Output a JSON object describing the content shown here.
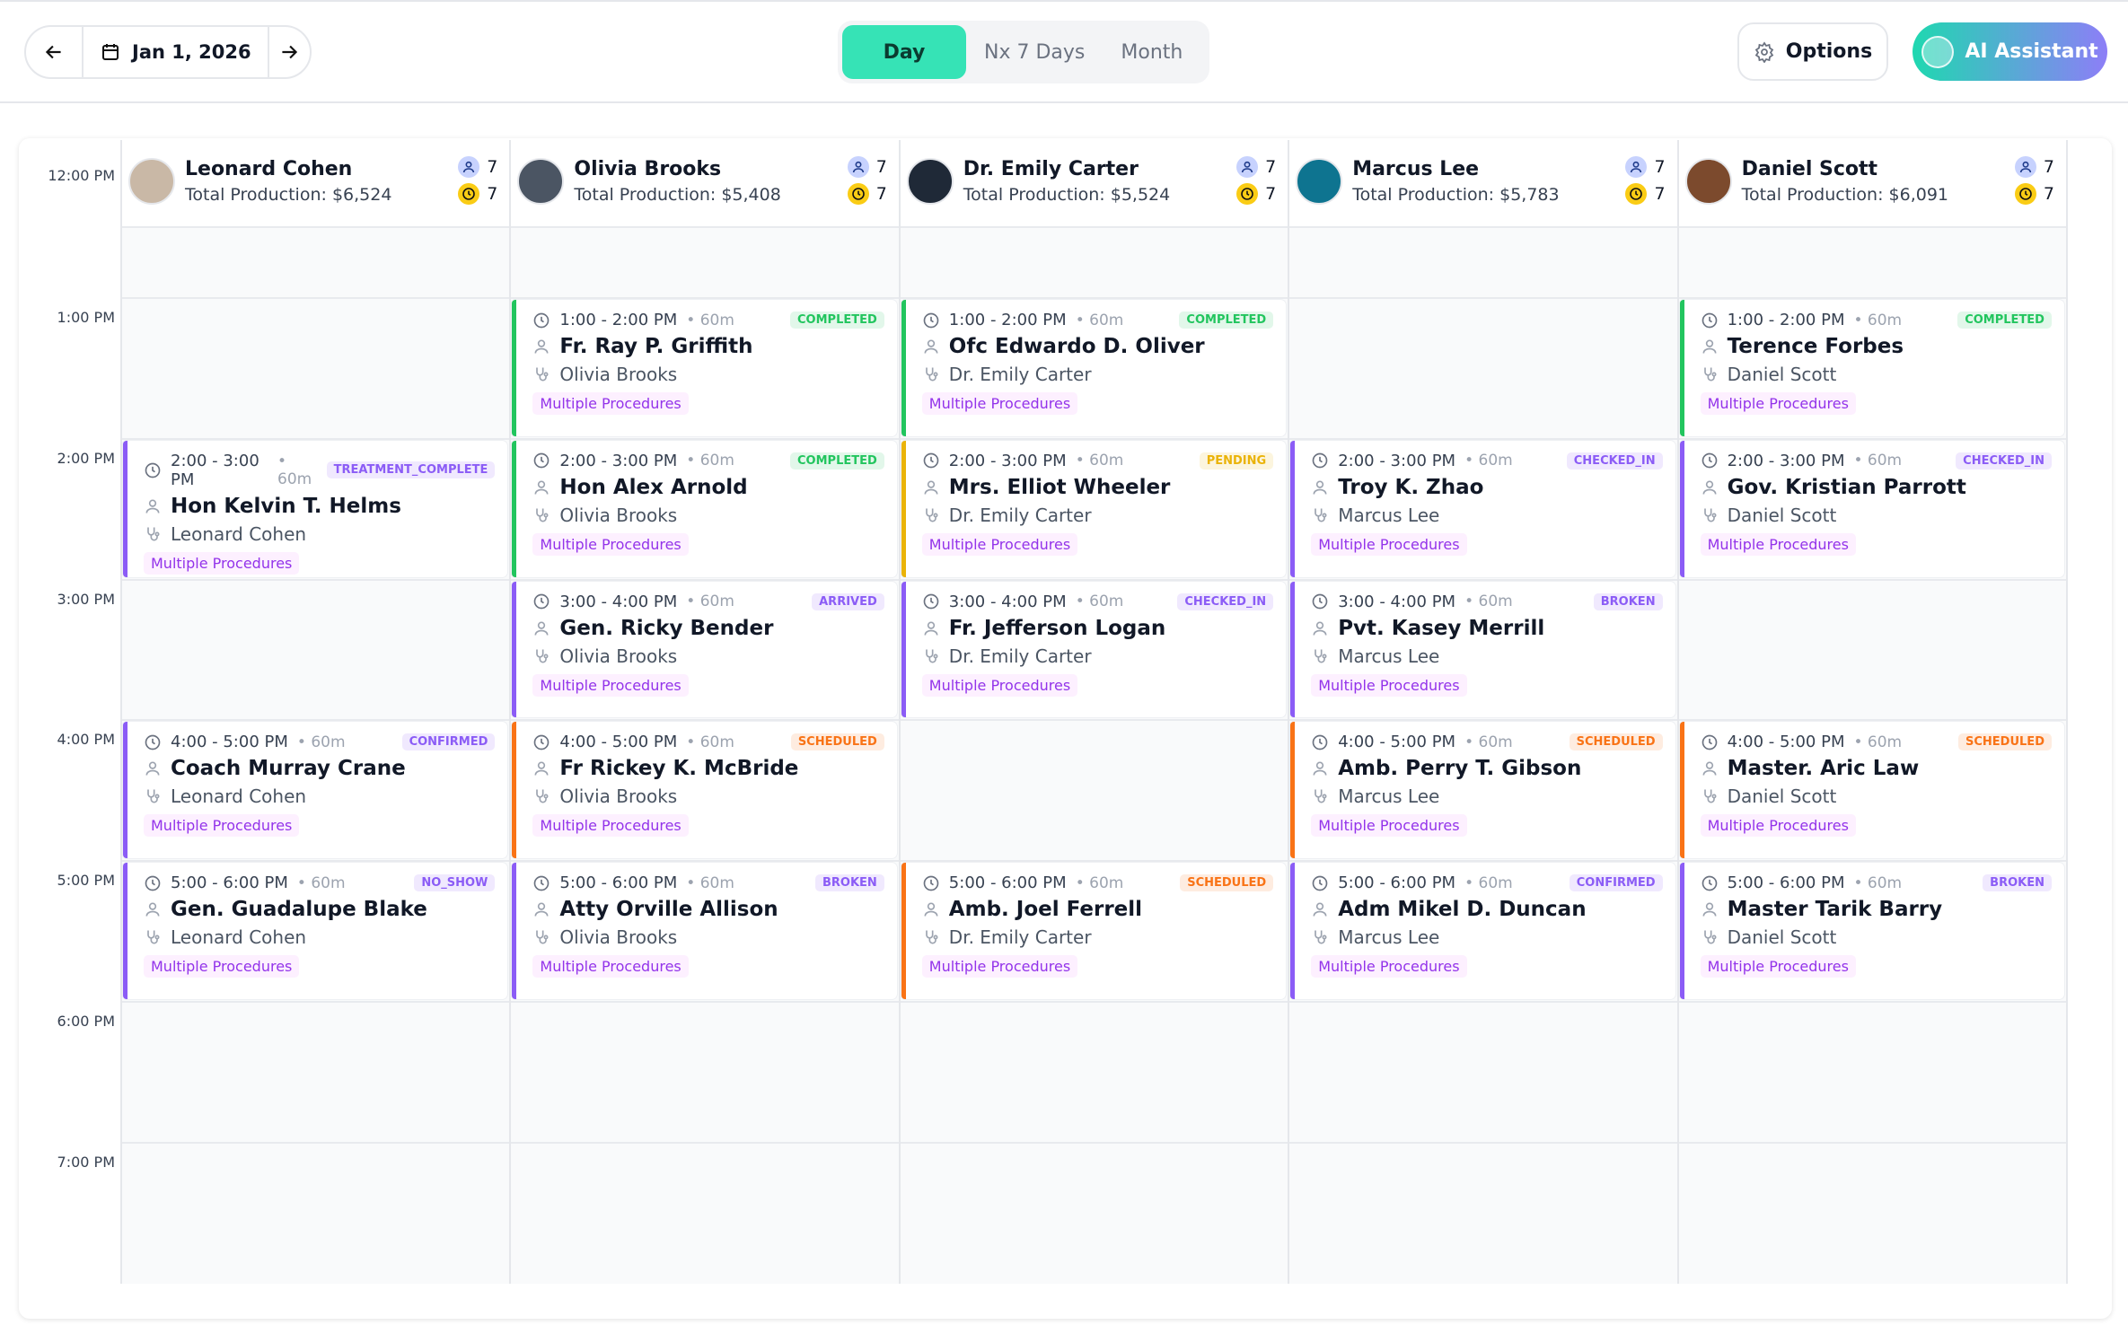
{
  "toolbar": {
    "date": "Jan 1, 2026",
    "views": [
      "Day",
      "Nx 7 Days",
      "Month"
    ],
    "active_view": 0,
    "options": "Options",
    "assistant": "AI Assistant"
  },
  "time_labels": [
    "12:00 PM",
    "1:00 PM",
    "2:00 PM",
    "3:00 PM",
    "4:00 PM",
    "5:00 PM",
    "6:00 PM",
    "7:00 PM"
  ],
  "providers": [
    {
      "name": "Leonard Cohen",
      "production": "Total Production: $6,524",
      "patients": 7,
      "hours": 7,
      "avatar": "#c9b8a6",
      "appointments": [
        {
          "time": "2:00 - 3:00 PM",
          "duration": "60m",
          "status": "TREATMENT_COMPLETE",
          "accent": "#8b5cf6",
          "patient": "Hon Kelvin T. Helms",
          "doctor": "Leonard Cohen",
          "procedures": "Multiple Procedures"
        },
        {
          "time": "4:00 - 5:00 PM",
          "duration": "60m",
          "status": "CONFIRMED",
          "accent": "#8b5cf6",
          "patient": "Coach Murray Crane",
          "doctor": "Leonard Cohen",
          "procedures": "Multiple Procedures"
        },
        {
          "time": "5:00 - 6:00 PM",
          "duration": "60m",
          "status": "NO_SHOW",
          "accent": "#8b5cf6",
          "patient": "Gen. Guadalupe Blake",
          "doctor": "Leonard Cohen",
          "procedures": "Multiple Procedures"
        }
      ]
    },
    {
      "name": "Olivia Brooks",
      "production": "Total Production: $5,408",
      "patients": 7,
      "hours": 7,
      "avatar": "#4b5563",
      "appointments": [
        {
          "time": "1:00 - 2:00 PM",
          "duration": "60m",
          "status": "COMPLETED",
          "accent": "#22c55e",
          "patient": "Fr. Ray P. Griffith",
          "doctor": "Olivia Brooks",
          "procedures": "Multiple Procedures"
        },
        {
          "time": "2:00 - 3:00 PM",
          "duration": "60m",
          "status": "COMPLETED",
          "accent": "#22c55e",
          "patient": "Hon Alex Arnold",
          "doctor": "Olivia Brooks",
          "procedures": "Multiple Procedures"
        },
        {
          "time": "3:00 - 4:00 PM",
          "duration": "60m",
          "status": "ARRIVED",
          "accent": "#8b5cf6",
          "patient": "Gen. Ricky Bender",
          "doctor": "Olivia Brooks",
          "procedures": "Multiple Procedures"
        },
        {
          "time": "4:00 - 5:00 PM",
          "duration": "60m",
          "status": "SCHEDULED",
          "accent": "#f97316",
          "patient": "Fr Rickey K. McBride",
          "doctor": "Olivia Brooks",
          "procedures": "Multiple Procedures"
        },
        {
          "time": "5:00 - 6:00 PM",
          "duration": "60m",
          "status": "BROKEN",
          "accent": "#8b5cf6",
          "patient": "Atty Orville Allison",
          "doctor": "Olivia Brooks",
          "procedures": "Multiple Procedures"
        }
      ]
    },
    {
      "name": "Dr. Emily Carter",
      "production": "Total Production: $5,524",
      "patients": 7,
      "hours": 7,
      "avatar": "#1f2937",
      "appointments": [
        {
          "time": "1:00 - 2:00 PM",
          "duration": "60m",
          "status": "COMPLETED",
          "accent": "#22c55e",
          "patient": "Ofc Edwardo D. Oliver",
          "doctor": "Dr. Emily Carter",
          "procedures": "Multiple Procedures"
        },
        {
          "time": "2:00 - 3:00 PM",
          "duration": "60m",
          "status": "PENDING",
          "accent": "#eab308",
          "patient": "Mrs. Elliot Wheeler",
          "doctor": "Dr. Emily Carter",
          "procedures": "Multiple Procedures"
        },
        {
          "time": "3:00 - 4:00 PM",
          "duration": "60m",
          "status": "CHECKED_IN",
          "accent": "#8b5cf6",
          "patient": "Fr. Jefferson Logan",
          "doctor": "Dr. Emily Carter",
          "procedures": "Multiple Procedures"
        },
        {
          "time": "5:00 - 6:00 PM",
          "duration": "60m",
          "status": "SCHEDULED",
          "accent": "#f97316",
          "patient": "Amb. Joel Ferrell",
          "doctor": "Dr. Emily Carter",
          "procedures": "Multiple Procedures"
        }
      ]
    },
    {
      "name": "Marcus Lee",
      "production": "Total Production: $5,783",
      "patients": 7,
      "hours": 7,
      "avatar": "#0e7490",
      "appointments": [
        {
          "time": "2:00 - 3:00 PM",
          "duration": "60m",
          "status": "CHECKED_IN",
          "accent": "#8b5cf6",
          "patient": "Troy K. Zhao",
          "doctor": "Marcus Lee",
          "procedures": "Multiple Procedures"
        },
        {
          "time": "3:00 - 4:00 PM",
          "duration": "60m",
          "status": "BROKEN",
          "accent": "#8b5cf6",
          "patient": "Pvt. Kasey Merrill",
          "doctor": "Marcus Lee",
          "procedures": "Multiple Procedures"
        },
        {
          "time": "4:00 - 5:00 PM",
          "duration": "60m",
          "status": "SCHEDULED",
          "accent": "#f97316",
          "patient": "Amb. Perry T. Gibson",
          "doctor": "Marcus Lee",
          "procedures": "Multiple Procedures"
        },
        {
          "time": "5:00 - 6:00 PM",
          "duration": "60m",
          "status": "CONFIRMED",
          "accent": "#8b5cf6",
          "patient": "Adm Mikel D. Duncan",
          "doctor": "Marcus Lee",
          "procedures": "Multiple Procedures"
        }
      ]
    },
    {
      "name": "Daniel Scott",
      "production": "Total Production: $6,091",
      "patients": 7,
      "hours": 7,
      "avatar": "#7c4a2d",
      "appointments": [
        {
          "time": "1:00 - 2:00 PM",
          "duration": "60m",
          "status": "COMPLETED",
          "accent": "#22c55e",
          "patient": "Terence Forbes",
          "doctor": "Daniel Scott",
          "procedures": "Multiple Procedures"
        },
        {
          "time": "2:00 - 3:00 PM",
          "duration": "60m",
          "status": "CHECKED_IN",
          "accent": "#8b5cf6",
          "patient": "Gov. Kristian Parrott",
          "doctor": "Daniel Scott",
          "procedures": "Multiple Procedures"
        },
        {
          "time": "4:00 - 5:00 PM",
          "duration": "60m",
          "status": "SCHEDULED",
          "accent": "#f97316",
          "patient": "Master. Aric Law",
          "doctor": "Daniel Scott",
          "procedures": "Multiple Procedures"
        },
        {
          "time": "5:00 - 6:00 PM",
          "duration": "60m",
          "status": "BROKEN",
          "accent": "#8b5cf6",
          "patient": "Master Tarik Barry",
          "doctor": "Daniel Scott",
          "procedures": "Multiple Procedures"
        }
      ]
    }
  ]
}
